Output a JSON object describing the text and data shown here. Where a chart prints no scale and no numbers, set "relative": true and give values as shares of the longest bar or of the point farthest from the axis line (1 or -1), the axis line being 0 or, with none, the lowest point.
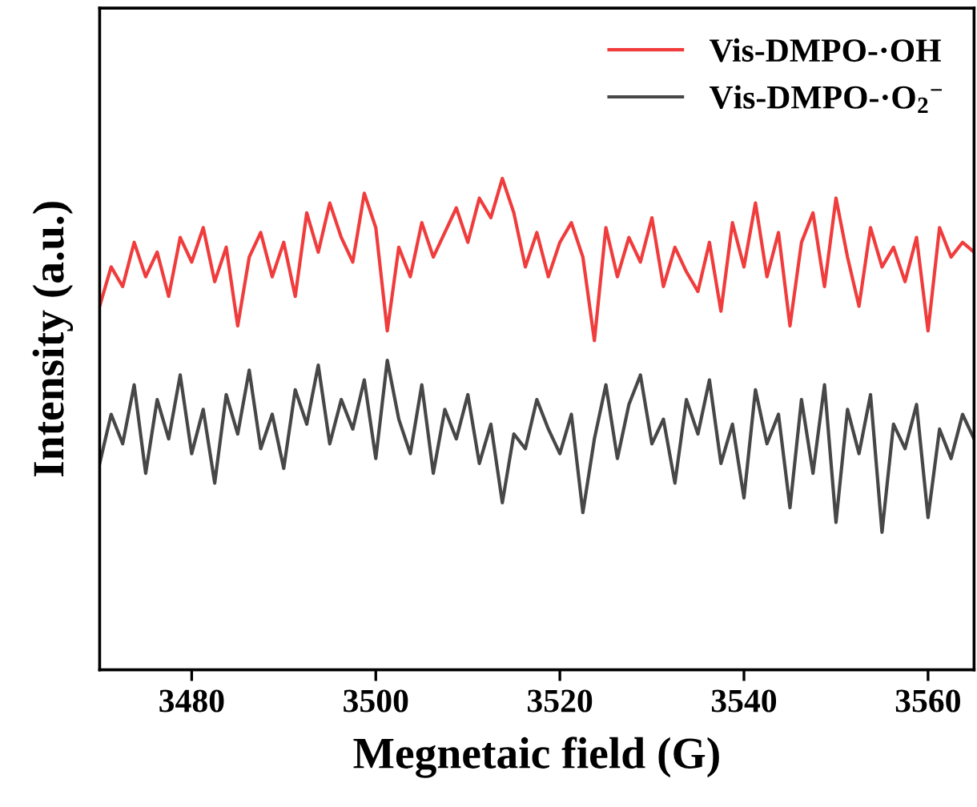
{
  "chart_data": {
    "type": "line",
    "relative": true,
    "xlabel": "Megnetaic field (G)",
    "ylabel": "Intensity (a.u.)",
    "xlim": [
      3470,
      3565
    ],
    "xticks": [
      3480,
      3500,
      3520,
      3540,
      3560
    ],
    "legend": "top right",
    "grid": false,
    "tick_labels": "x",
    "x": [
      3470,
      3471.25,
      3472.5,
      3473.75,
      3475,
      3476.25,
      3477.5,
      3478.75,
      3480,
      3481.25,
      3482.5,
      3483.75,
      3485,
      3486.25,
      3487.5,
      3488.75,
      3490,
      3491.25,
      3492.5,
      3493.75,
      3495,
      3496.25,
      3497.5,
      3498.75,
      3500,
      3501.25,
      3502.5,
      3503.75,
      3505,
      3506.25,
      3507.5,
      3508.75,
      3510,
      3511.25,
      3512.5,
      3513.75,
      3515,
      3516.25,
      3517.5,
      3518.75,
      3520,
      3521.25,
      3522.5,
      3523.75,
      3525,
      3526.25,
      3527.5,
      3528.75,
      3530,
      3531.25,
      3532.5,
      3533.75,
      3535,
      3536.25,
      3537.5,
      3538.75,
      3540,
      3541.25,
      3542.5,
      3543.75,
      3545,
      3546.25,
      3547.5,
      3548.75,
      3550,
      3551.25,
      3552.5,
      3553.75,
      3555,
      3556.25,
      3557.5,
      3558.75,
      3560,
      3561.25,
      3562.5,
      3563.75,
      3565
    ],
    "series": [
      {
        "name": "Vis-DMPO-·OH",
        "color": "#f03c3c",
        "values": [
          0.74,
          0.82,
          0.78,
          0.87,
          0.8,
          0.85,
          0.76,
          0.88,
          0.83,
          0.9,
          0.79,
          0.86,
          0.7,
          0.84,
          0.89,
          0.8,
          0.87,
          0.76,
          0.93,
          0.85,
          0.95,
          0.88,
          0.83,
          0.97,
          0.9,
          0.69,
          0.86,
          0.8,
          0.91,
          0.84,
          0.89,
          0.94,
          0.87,
          0.96,
          0.92,
          1.0,
          0.93,
          0.82,
          0.89,
          0.8,
          0.87,
          0.91,
          0.84,
          0.67,
          0.9,
          0.8,
          0.88,
          0.83,
          0.92,
          0.78,
          0.86,
          0.81,
          0.77,
          0.87,
          0.73,
          0.91,
          0.82,
          0.95,
          0.8,
          0.89,
          0.7,
          0.87,
          0.93,
          0.78,
          0.96,
          0.84,
          0.74,
          0.9,
          0.82,
          0.86,
          0.79,
          0.88,
          0.69,
          0.9,
          0.84,
          0.87,
          0.85
        ]
      },
      {
        "name": "Vis-DMPO-·O$_{2}$$^{−}$",
        "color": "#474747",
        "values": [
          0.42,
          0.52,
          0.46,
          0.58,
          0.4,
          0.55,
          0.47,
          0.6,
          0.44,
          0.53,
          0.38,
          0.56,
          0.48,
          0.61,
          0.45,
          0.52,
          0.41,
          0.57,
          0.5,
          0.62,
          0.46,
          0.55,
          0.49,
          0.59,
          0.43,
          0.63,
          0.51,
          0.44,
          0.58,
          0.4,
          0.53,
          0.47,
          0.56,
          0.42,
          0.5,
          0.34,
          0.48,
          0.45,
          0.55,
          0.49,
          0.44,
          0.52,
          0.32,
          0.47,
          0.58,
          0.43,
          0.54,
          0.6,
          0.46,
          0.51,
          0.38,
          0.55,
          0.48,
          0.59,
          0.42,
          0.5,
          0.35,
          0.57,
          0.46,
          0.52,
          0.33,
          0.55,
          0.4,
          0.58,
          0.3,
          0.53,
          0.44,
          0.56,
          0.28,
          0.5,
          0.45,
          0.54,
          0.31,
          0.49,
          0.43,
          0.52,
          0.47
        ]
      }
    ]
  }
}
